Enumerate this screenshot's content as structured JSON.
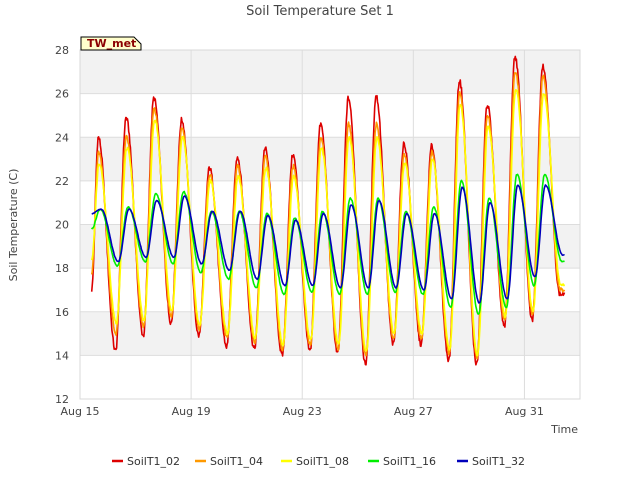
{
  "chart_data": {
    "type": "line",
    "title": "Soil Temperature Set 1",
    "xlabel": "Time",
    "ylabel": "Soil Temperature (C)",
    "badge": "TW_met",
    "ylim": [
      12,
      28
    ],
    "yticks": [
      12,
      14,
      16,
      18,
      20,
      22,
      24,
      26,
      28
    ],
    "xlim": [
      "2023-08-15",
      "2023-09-02"
    ],
    "xticks": [
      {
        "date": "2023-08-15",
        "label": "Aug 15"
      },
      {
        "date": "2023-08-19",
        "label": "Aug 19"
      },
      {
        "date": "2023-08-23",
        "label": "Aug 23"
      },
      {
        "date": "2023-08-27",
        "label": "Aug 27"
      },
      {
        "date": "2023-08-31",
        "label": "Aug 31"
      }
    ],
    "grid": true,
    "band_shading": true,
    "legend_position": "bottom",
    "days": [
      "2023-08-15",
      "2023-08-16",
      "2023-08-17",
      "2023-08-18",
      "2023-08-19",
      "2023-08-20",
      "2023-08-21",
      "2023-08-22",
      "2023-08-23",
      "2023-08-24",
      "2023-08-25",
      "2023-08-26",
      "2023-08-27",
      "2023-08-28",
      "2023-08-29",
      "2023-08-30",
      "2023-08-31",
      "2023-09-01"
    ],
    "series": [
      {
        "name": "SoilT1_02",
        "color": "#dd0000",
        "daily_min": [
          14.8,
          14.2,
          14.9,
          15.5,
          14.9,
          14.4,
          14.3,
          14.0,
          14.2,
          14.1,
          13.6,
          14.5,
          14.5,
          13.8,
          13.6,
          15.3,
          15.6,
          16.8
        ],
        "daily_max": [
          24.0,
          24.9,
          25.8,
          24.8,
          22.6,
          23.1,
          23.5,
          23.2,
          24.6,
          25.8,
          25.9,
          23.7,
          23.6,
          26.6,
          25.5,
          27.7,
          27.3,
          null
        ],
        "start": 17.0
      },
      {
        "name": "SoilT1_04",
        "color": "#ff9900",
        "daily_min": [
          15.5,
          15.0,
          15.3,
          15.8,
          15.2,
          14.8,
          14.6,
          14.3,
          14.5,
          14.3,
          14.0,
          14.8,
          14.8,
          14.1,
          13.9,
          15.6,
          15.9,
          17.0
        ],
        "daily_max": [
          23.3,
          24.0,
          25.3,
          24.4,
          22.3,
          22.7,
          23.1,
          22.7,
          24.0,
          24.6,
          24.6,
          23.2,
          23.3,
          26.0,
          25.0,
          27.0,
          26.8,
          null
        ],
        "start": 17.8
      },
      {
        "name": "SoilT1_08",
        "color": "#ffff00",
        "daily_min": [
          16.0,
          15.5,
          15.6,
          16.0,
          15.4,
          15.0,
          14.8,
          14.5,
          14.7,
          14.5,
          14.2,
          15.0,
          15.0,
          14.3,
          14.0,
          15.8,
          16.0,
          17.2
        ],
        "daily_max": [
          22.8,
          23.5,
          24.8,
          24.0,
          22.0,
          22.2,
          22.6,
          22.2,
          23.5,
          24.0,
          24.0,
          22.8,
          23.0,
          25.5,
          24.5,
          26.2,
          26.0,
          null
        ],
        "start": 18.4
      },
      {
        "name": "SoilT1_16",
        "color": "#00ee00",
        "daily_min": [
          18.1,
          18.1,
          18.3,
          18.2,
          17.8,
          17.5,
          17.1,
          16.8,
          16.9,
          16.8,
          16.8,
          16.9,
          16.8,
          16.2,
          15.9,
          16.2,
          17.2,
          18.3
        ],
        "daily_max": [
          20.7,
          20.8,
          21.4,
          21.5,
          20.6,
          20.6,
          20.5,
          20.3,
          20.6,
          21.2,
          21.2,
          20.6,
          20.8,
          22.0,
          21.2,
          22.3,
          22.3,
          null
        ],
        "start": 19.8
      },
      {
        "name": "SoilT1_32",
        "color": "#0000bb",
        "daily_min": [
          18.4,
          18.3,
          18.5,
          18.5,
          18.2,
          17.9,
          17.5,
          17.2,
          17.2,
          17.1,
          17.1,
          17.1,
          17.0,
          16.6,
          16.4,
          16.6,
          17.6,
          18.6
        ],
        "daily_max": [
          20.7,
          20.7,
          21.1,
          21.3,
          20.6,
          20.6,
          20.4,
          20.2,
          20.5,
          20.9,
          21.1,
          20.5,
          20.5,
          21.7,
          21.0,
          21.8,
          21.8,
          null
        ],
        "start": 20.5
      }
    ]
  }
}
